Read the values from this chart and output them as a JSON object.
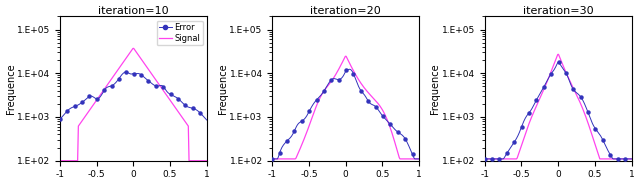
{
  "titles": [
    "iteration=10",
    "iteration=20",
    "iteration=30"
  ],
  "ylabel": "Frequence",
  "xlim": [
    -1,
    1
  ],
  "ylim_log": [
    100,
    200000
  ],
  "error_color": "#3333bb",
  "signal_color": "#ff44ee",
  "legend_labels": [
    "Error",
    "Signal"
  ],
  "figsize": [
    6.4,
    1.85
  ],
  "dpi": 100,
  "yticks": [
    100,
    1000,
    10000,
    100000
  ],
  "ytick_labels": [
    "1.E+02",
    "1.E+03",
    "1.E+04",
    "1.E+05"
  ],
  "xticks": [
    -1,
    -0.5,
    0,
    0.5,
    1
  ],
  "xtick_labels": [
    "-1",
    "-0.5",
    "0",
    "0.5",
    "1"
  ]
}
